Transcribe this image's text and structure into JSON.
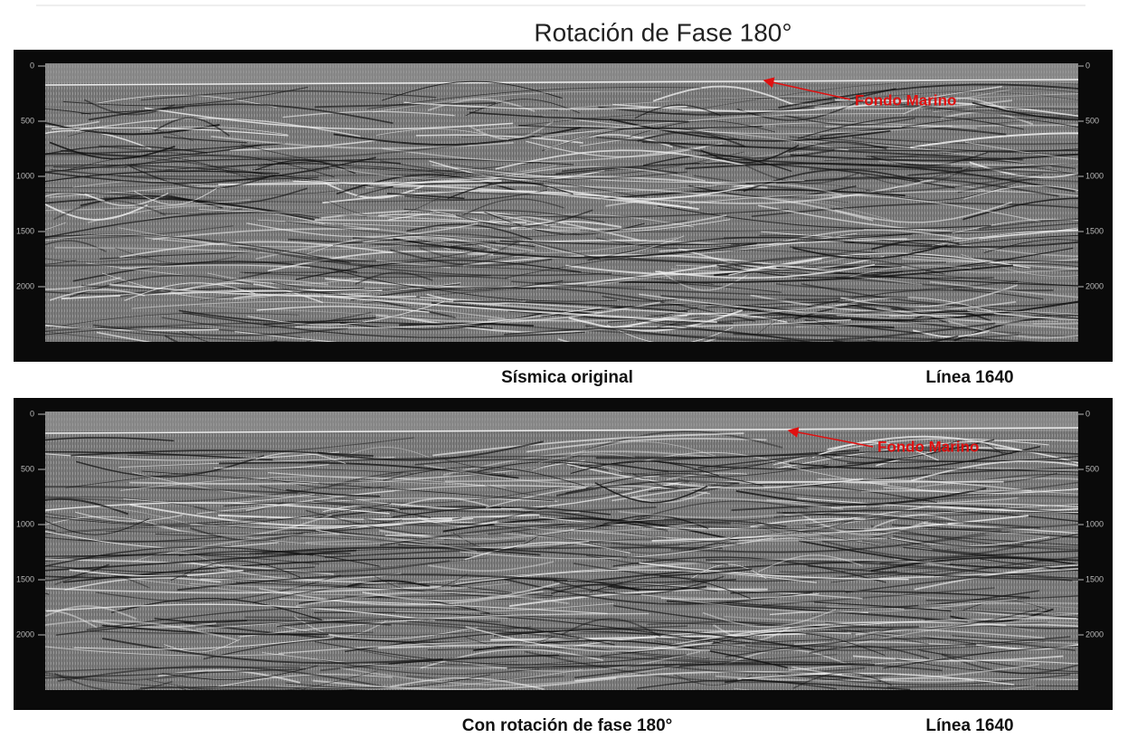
{
  "title": "Rotación de Fase 180°",
  "panels": [
    {
      "caption": "Sísmica original",
      "line": "Línea 1640",
      "annotation": "Fondo Marino",
      "yticks": [
        0,
        500,
        1000,
        1500,
        2000
      ]
    },
    {
      "caption": "Con rotación de fase 180°",
      "line": "Línea 1640",
      "annotation": "Fondo Marino",
      "yticks": [
        0,
        500,
        1000,
        1500,
        2000
      ]
    }
  ]
}
